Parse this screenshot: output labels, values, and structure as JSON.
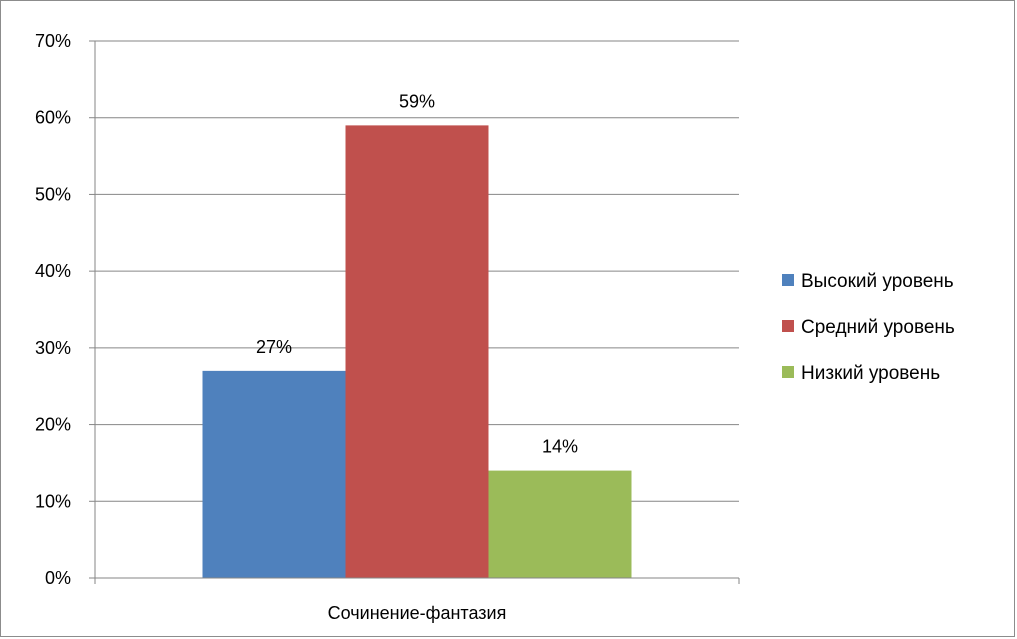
{
  "chart_data": {
    "type": "bar",
    "categories": [
      "Сочинение-фантазия"
    ],
    "series": [
      {
        "name": "Высокий уровень",
        "values": [
          27
        ],
        "color": "#4f81bd",
        "label": "27%"
      },
      {
        "name": "Средний уровень",
        "values": [
          59
        ],
        "color": "#c0504d",
        "label": "59%"
      },
      {
        "name": "Низкий уровень",
        "values": [
          14
        ],
        "color": "#9bbb59",
        "label": "14%"
      }
    ],
    "y_ticks": [
      "0%",
      "10%",
      "20%",
      "30%",
      "40%",
      "50%",
      "60%",
      "70%"
    ],
    "ylim": [
      0,
      70
    ],
    "y_unit": "%",
    "grid": true,
    "legend_position": "right"
  }
}
